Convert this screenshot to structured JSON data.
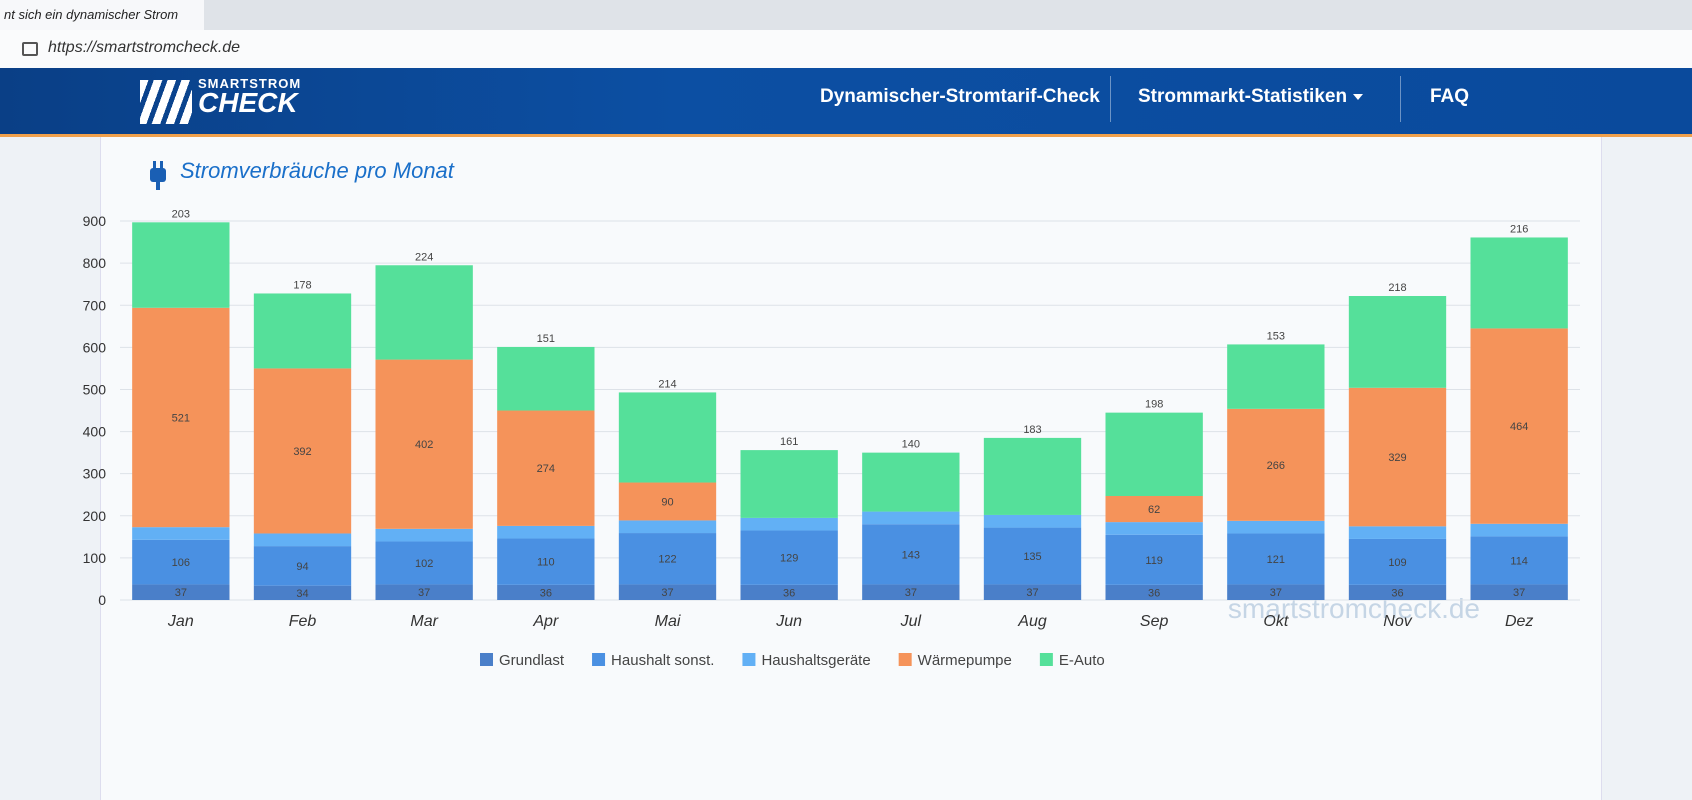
{
  "browser": {
    "tab_title": "nt sich ein dynamischer Strom",
    "url": "https://smartstromcheck.de"
  },
  "header": {
    "logo_top": "SMARTSTROM",
    "logo_bottom": "CHECK",
    "nav": [
      "Dynamischer-Stromtarif-Check",
      "Strommarkt-Statistiken",
      "FAQ"
    ]
  },
  "chart_data": {
    "type": "bar",
    "stacked": true,
    "title": "Stromverbräuche pro Monat",
    "watermark": "smartstromcheck.de",
    "categories": [
      "Jan",
      "Feb",
      "Mar",
      "Apr",
      "Mai",
      "Jun",
      "Jul",
      "Aug",
      "Sep",
      "Okt",
      "Nov",
      "Dez"
    ],
    "series": [
      {
        "name": "Grundlast",
        "color": "#4a7fc9",
        "show_labels": true,
        "values": [
          37,
          34,
          37,
          36,
          37,
          36,
          37,
          37,
          36,
          37,
          36,
          37
        ]
      },
      {
        "name": "Haushalt sonst.",
        "color": "#4a90e2",
        "show_labels": true,
        "values": [
          106,
          94,
          102,
          110,
          122,
          129,
          143,
          135,
          119,
          121,
          109,
          114
        ]
      },
      {
        "name": "Haushaltsgeräte",
        "color": "#62b0f5",
        "show_labels": false,
        "values": [
          30,
          30,
          30,
          30,
          30,
          30,
          30,
          30,
          30,
          30,
          30,
          30
        ]
      },
      {
        "name": "Wärmepumpe",
        "color": "#f5935a",
        "show_labels": true,
        "values": [
          521,
          392,
          402,
          274,
          90,
          0,
          0,
          0,
          62,
          266,
          329,
          464
        ]
      },
      {
        "name": "E-Auto",
        "color": "#55e09a",
        "show_labels": true,
        "values": [
          203,
          178,
          224,
          151,
          214,
          161,
          140,
          183,
          198,
          153,
          218,
          216
        ]
      }
    ],
    "ylim": [
      0,
      950
    ],
    "yticks": [
      0,
      100,
      200,
      300,
      400,
      500,
      600,
      700,
      800,
      900
    ],
    "grid": true,
    "legend": "bottom"
  }
}
